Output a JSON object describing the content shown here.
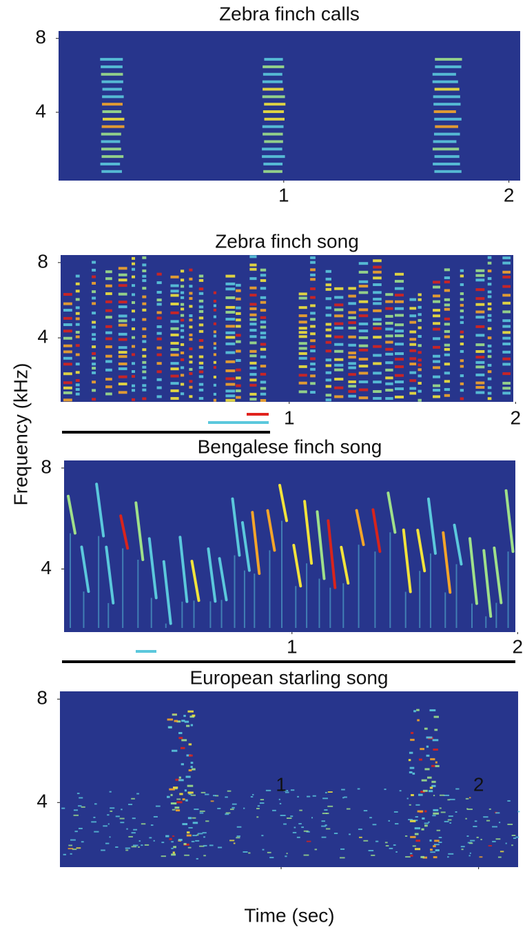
{
  "ylabel": "Frequency (kHz)",
  "xlabel": "Time (sec)",
  "panels": [
    {
      "title": "Zebra finch calls",
      "ylim": [
        0.3,
        8.4
      ],
      "yticks": [
        4,
        8
      ],
      "xlim": [
        0,
        2.05
      ],
      "xticks": [
        1,
        2
      ]
    },
    {
      "title": "Zebra finch song",
      "ylim": [
        0.6,
        8.4
      ],
      "yticks": [
        4,
        8
      ],
      "xlim": [
        -0.01,
        1.99
      ],
      "xticks": [
        1,
        2
      ]
    },
    {
      "title": "Bengalese finch song",
      "ylim": [
        1.5,
        8.3
      ],
      "yticks": [
        4,
        8
      ],
      "xlim": [
        -0.01,
        1.99
      ],
      "xticks": [
        1,
        2
      ]
    },
    {
      "title": "European starling song",
      "ylim": [
        1.5,
        8.3
      ],
      "yticks": [
        4,
        8
      ],
      "xlim": [
        -0.12,
        2.2
      ],
      "xticks": [
        1,
        2
      ]
    }
  ]
}
